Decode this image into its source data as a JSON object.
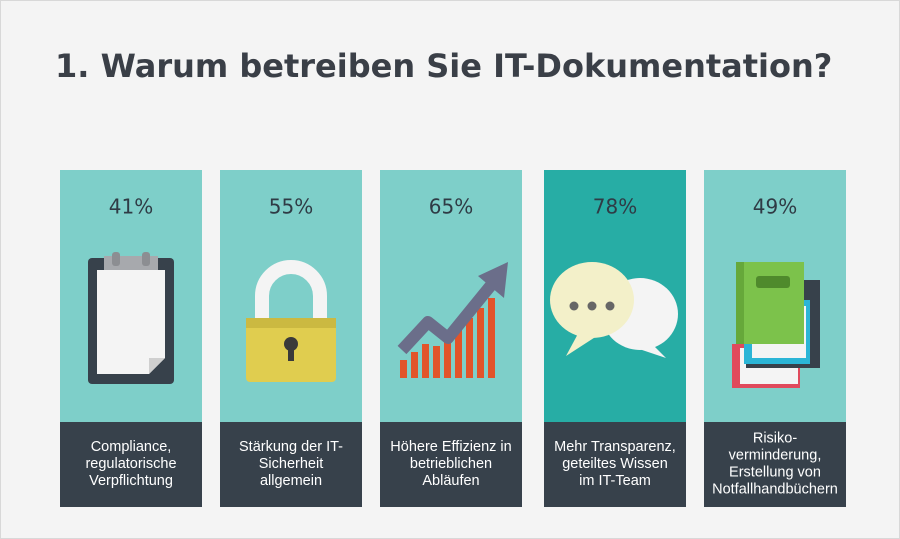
{
  "title": "1.  Warum betreiben Sie IT-Dokumentation?",
  "cards": [
    {
      "percent": "41%",
      "label": [
        "Compliance,",
        "regulatorische",
        "Verpflichtung"
      ]
    },
    {
      "percent": "55%",
      "label": [
        "Stärkung der IT-",
        "Sicherheit",
        "allgemein"
      ]
    },
    {
      "percent": "65%",
      "label": [
        "Höhere Effizienz in",
        "betrieblichen",
        "Abläufen"
      ]
    },
    {
      "percent": "78%",
      "label": [
        "Mehr Transparenz,",
        "geteiltes Wissen",
        "im IT-Team"
      ]
    },
    {
      "percent": "49%",
      "label": [
        "Risiko-",
        "verminderung,",
        "Erstellung von",
        "Notfallhandbüchern"
      ]
    }
  ]
}
